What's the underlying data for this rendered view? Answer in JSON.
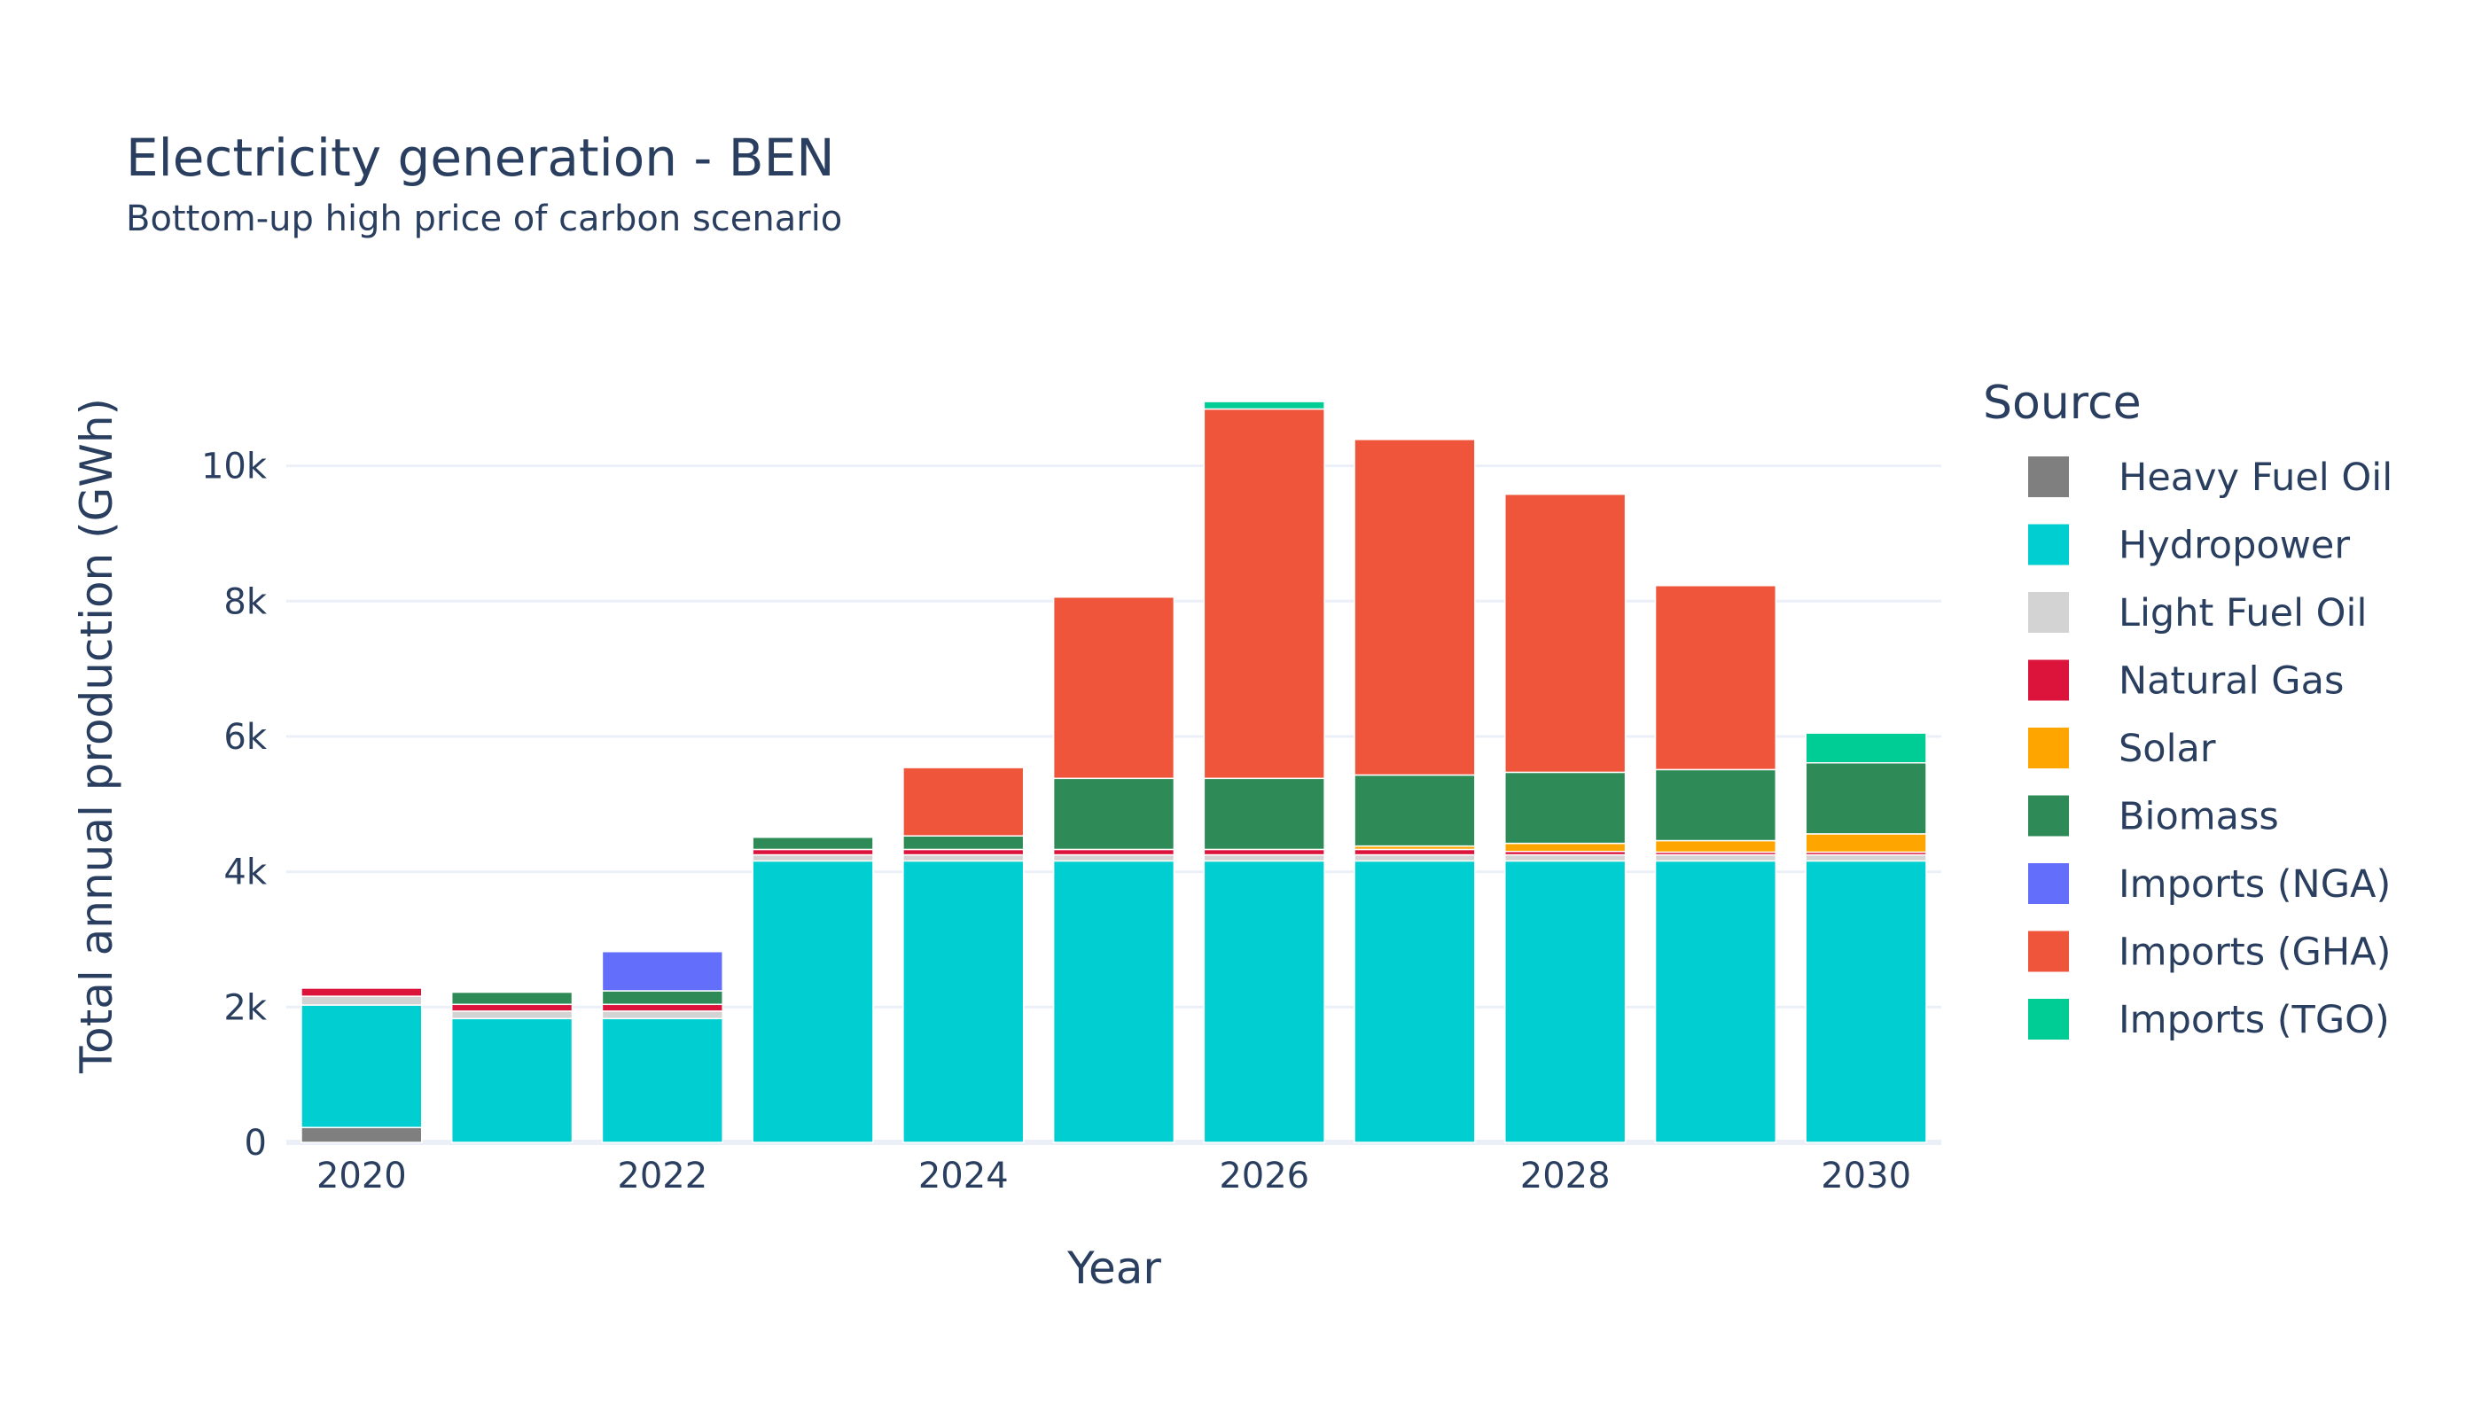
{
  "chart_data": {
    "type": "bar",
    "stacked": true,
    "title": "Electricity generation - BEN",
    "subtitle": "Bottom-up high price of carbon scenario",
    "xlabel": "Year",
    "ylabel": "Total annual production (GWh)",
    "legend_title": "Source",
    "legend_position": "right",
    "grid": true,
    "categories": [
      2020,
      2021,
      2022,
      2023,
      2024,
      2025,
      2026,
      2027,
      2028,
      2029,
      2030
    ],
    "x_ticks": [
      {
        "value": 2020,
        "label": "2020"
      },
      {
        "value": 2022,
        "label": "2022"
      },
      {
        "value": 2024,
        "label": "2024"
      },
      {
        "value": 2026,
        "label": "2026"
      },
      {
        "value": 2028,
        "label": "2028"
      },
      {
        "value": 2030,
        "label": "2030"
      }
    ],
    "y_ticks": [
      {
        "value": 0,
        "label": "0"
      },
      {
        "value": 2000,
        "label": "2k"
      },
      {
        "value": 4000,
        "label": "4k"
      },
      {
        "value": 6000,
        "label": "6k"
      },
      {
        "value": 8000,
        "label": "8k"
      },
      {
        "value": 10000,
        "label": "10k"
      }
    ],
    "xlim": [
      2019.5,
      2030.5
    ],
    "ylim": [
      0,
      11580
    ],
    "series": [
      {
        "name": "Heavy Fuel Oil",
        "color": "#7f7f7f",
        "values": [
          220,
          0,
          0,
          0,
          0,
          0,
          0,
          0,
          0,
          0,
          0
        ]
      },
      {
        "name": "Hydropower",
        "color": "#00ced1",
        "values": [
          1810,
          1830,
          1830,
          4160,
          4160,
          4160,
          4160,
          4160,
          4160,
          4160,
          4160
        ]
      },
      {
        "name": "Light Fuel Oil",
        "color": "#d3d3d3",
        "values": [
          130,
          110,
          110,
          90,
          90,
          90,
          90,
          90,
          90,
          90,
          90
        ]
      },
      {
        "name": "Natural Gas",
        "color": "#dc143c",
        "values": [
          120,
          100,
          100,
          80,
          80,
          80,
          80,
          80,
          50,
          40,
          40
        ]
      },
      {
        "name": "Solar",
        "color": "#ffa500",
        "values": [
          0,
          0,
          0,
          0,
          0,
          0,
          0,
          50,
          120,
          170,
          270
        ]
      },
      {
        "name": "Biomass",
        "color": "#2e8b57",
        "values": [
          0,
          180,
          200,
          180,
          200,
          1050,
          1050,
          1050,
          1050,
          1050,
          1050
        ]
      },
      {
        "name": "Imports (NGA)",
        "color": "#636efa",
        "values": [
          0,
          0,
          580,
          0,
          0,
          0,
          0,
          0,
          0,
          0,
          0
        ]
      },
      {
        "name": "Imports (GHA)",
        "color": "#ef553b",
        "values": [
          0,
          0,
          0,
          0,
          1010,
          2680,
          5460,
          4960,
          4110,
          2720,
          0
        ]
      },
      {
        "name": "Imports (TGO)",
        "color": "#00cc96",
        "values": [
          0,
          0,
          0,
          0,
          0,
          0,
          110,
          0,
          0,
          0,
          440
        ]
      }
    ]
  }
}
